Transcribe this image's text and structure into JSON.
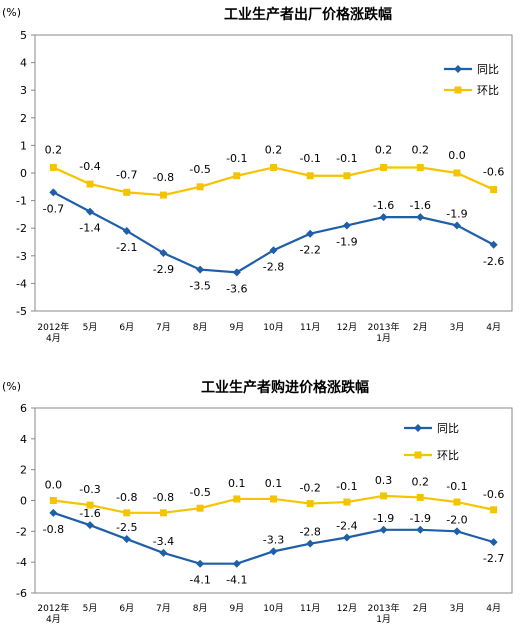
{
  "colors": {
    "yoy": "#1f5fa8",
    "mom": "#f5c400",
    "grid": "#b0b0b0",
    "border": "#888888"
  },
  "chart_data": [
    {
      "type": "line",
      "title": "工业生产者出厂价格涨跌幅",
      "unit_label": "(%)",
      "categories": [
        [
          "2012年",
          "4月"
        ],
        [
          "5月"
        ],
        [
          "6月"
        ],
        [
          "7月"
        ],
        [
          "8月"
        ],
        [
          "9月"
        ],
        [
          "10月"
        ],
        [
          "11月"
        ],
        [
          "12月"
        ],
        [
          "2013年",
          "1月"
        ],
        [
          "2月"
        ],
        [
          "3月"
        ],
        [
          "4月"
        ]
      ],
      "ylim": [
        -5,
        5
      ],
      "yticks": [
        -5,
        -4,
        -3,
        -2,
        -1,
        0,
        1,
        2,
        3,
        4,
        5
      ],
      "ytick_labels": [
        "-5",
        "-4",
        "-3",
        "-2",
        "-1",
        "0",
        "1",
        "2",
        "3",
        "4",
        "5"
      ],
      "series": [
        {
          "name": "同比",
          "marker": "diamond",
          "values": [
            -0.7,
            -1.4,
            -2.1,
            -2.9,
            -3.5,
            -3.6,
            -2.8,
            -2.2,
            -1.9,
            -1.6,
            -1.6,
            -1.9,
            -2.6
          ],
          "labels": [
            "-0.7",
            "-1.4",
            "-2.1",
            "-2.9",
            "-3.5",
            "-3.6",
            "-2.8",
            "-2.2",
            "-1.9",
            "-1.6",
            "-1.6",
            "-1.9",
            "-2.6"
          ]
        },
        {
          "name": "环比",
          "marker": "square",
          "values": [
            0.2,
            -0.4,
            -0.7,
            -0.8,
            -0.5,
            -0.1,
            0.2,
            -0.1,
            -0.1,
            0.2,
            0.2,
            0.0,
            -0.6
          ],
          "labels": [
            "0.2",
            "-0.4",
            "-0.7",
            "-0.8",
            "-0.5",
            "-0.1",
            "0.2",
            "-0.1",
            "-0.1",
            "0.2",
            "0.2",
            "0.0",
            "-0.6"
          ]
        }
      ],
      "legend": "right"
    },
    {
      "type": "line",
      "title": "工业生产者购进价格涨跌幅",
      "unit_label": "(%)",
      "categories": [
        [
          "2012年",
          "4月"
        ],
        [
          "5月"
        ],
        [
          "6月"
        ],
        [
          "7月"
        ],
        [
          "8月"
        ],
        [
          "9月"
        ],
        [
          "10月"
        ],
        [
          "11月"
        ],
        [
          "12月"
        ],
        [
          "2013年",
          "1月"
        ],
        [
          "2月"
        ],
        [
          "3月"
        ],
        [
          "4月"
        ]
      ],
      "ylim": [
        -6,
        6
      ],
      "yticks": [
        -6,
        -4,
        -2,
        0,
        2,
        4,
        6
      ],
      "ytick_labels": [
        "-6",
        "-4",
        "-2",
        "0",
        "2",
        "4",
        "6"
      ],
      "series": [
        {
          "name": "同比",
          "marker": "diamond",
          "values": [
            -0.8,
            -1.6,
            -2.5,
            -3.4,
            -4.1,
            -4.1,
            -3.3,
            -2.8,
            -2.4,
            -1.9,
            -1.9,
            -2.0,
            -2.7
          ],
          "labels": [
            "-0.8",
            "-1.6",
            "-2.5",
            "-3.4",
            "-4.1",
            "-4.1",
            "-3.3",
            "-2.8",
            "-2.4",
            "-1.9",
            "-1.9",
            "-2.0",
            "-2.7"
          ]
        },
        {
          "name": "环比",
          "marker": "square",
          "values": [
            0.0,
            -0.3,
            -0.8,
            -0.8,
            -0.5,
            0.1,
            0.1,
            -0.2,
            -0.1,
            0.3,
            0.2,
            -0.1,
            -0.6
          ],
          "labels": [
            "0.0",
            "-0.3",
            "-0.8",
            "-0.8",
            "-0.5",
            "0.1",
            "0.1",
            "-0.2",
            "-0.1",
            "0.3",
            "0.2",
            "-0.1",
            "-0.6"
          ]
        }
      ],
      "legend": "right"
    }
  ]
}
